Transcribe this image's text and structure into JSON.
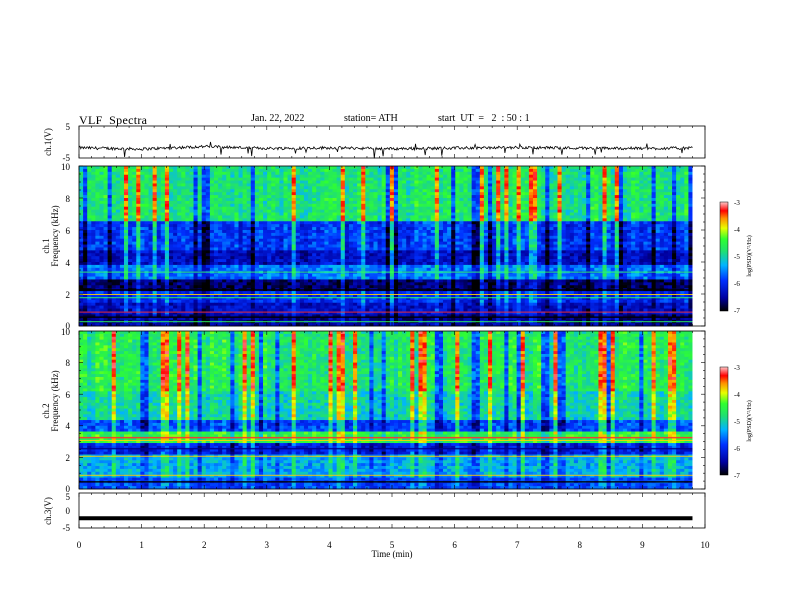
{
  "header": {
    "title": "VLF  Spectra",
    "date": "Jan. 22, 2022",
    "station": "station= ATH",
    "start": "start  UT  =   2  : 50 : 1"
  },
  "chart_data": [
    {
      "type": "line",
      "name": "ch1-waveform",
      "ylabel": "ch.1(V)",
      "ylim": [
        -5,
        5
      ],
      "yticks": [
        "5",
        "-5"
      ],
      "xlim": [
        0,
        10
      ],
      "approx_level": -2.0,
      "x": [
        0,
        1,
        2,
        3,
        4,
        5,
        6,
        7,
        8,
        9,
        9.8
      ],
      "y": [
        -1.8,
        -2.2,
        -1.4,
        -2.0,
        -1.8,
        -2.1,
        -1.9,
        -1.7,
        -1.9,
        -2.0,
        -1.9
      ]
    },
    {
      "type": "heatmap",
      "name": "ch1-spectrogram",
      "ylabel": "ch.1\nFrequency  (kHz)",
      "ylim": [
        0,
        10
      ],
      "yticks": [
        "0",
        "2",
        "4",
        "6",
        "8",
        "10"
      ],
      "xlim": [
        0,
        10
      ],
      "colorbar": {
        "label": "log(PSD)(V²/Hz)",
        "range": [
          -7,
          -3
        ],
        "ticks": [
          "-3",
          "-4",
          "-5",
          "-6",
          "-7"
        ]
      }
    },
    {
      "type": "heatmap",
      "name": "ch2-spectrogram",
      "ylabel": "ch.2\nFrequency  (kHz)",
      "ylim": [
        0,
        10
      ],
      "yticks": [
        "0",
        "2",
        "4",
        "6",
        "8",
        "10"
      ],
      "xlim": [
        0,
        10
      ],
      "colorbar": {
        "label": "log(PSD)(V²/Hz)",
        "range": [
          -7,
          -3
        ],
        "ticks": [
          "-3",
          "-4",
          "-5",
          "-6",
          "-7"
        ]
      }
    },
    {
      "type": "line",
      "name": "ch3-waveform",
      "ylabel": "ch.3(V)",
      "ylim": [
        -5,
        5
      ],
      "yticks": [
        "5",
        "0",
        "-5"
      ],
      "xlim": [
        0,
        10
      ],
      "x": [
        0,
        9.8
      ],
      "y": [
        -2.2,
        -2.2
      ]
    }
  ],
  "xaxis": {
    "label": "Time  (min)",
    "ticks": [
      "0",
      "1",
      "2",
      "3",
      "4",
      "5",
      "6",
      "7",
      "8",
      "9",
      "10"
    ]
  },
  "colors": {
    "low": "#000000",
    "mid": "#00c8ff",
    "high": "#ff0000"
  }
}
